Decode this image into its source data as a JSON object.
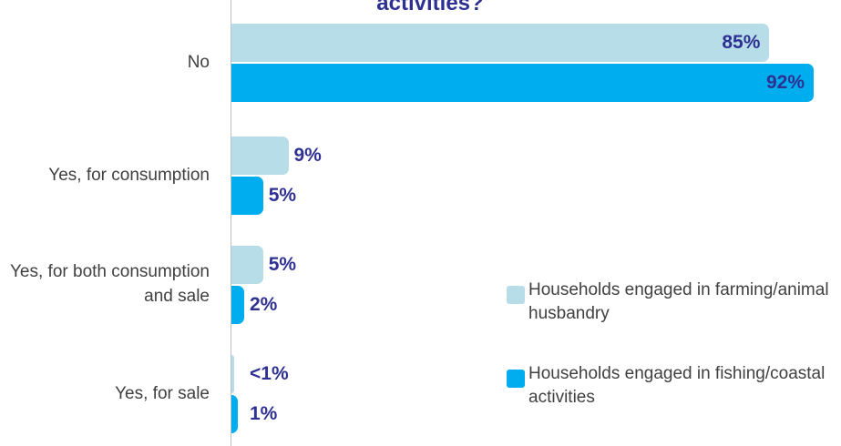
{
  "chart_data": {
    "type": "bar",
    "orientation": "horizontal",
    "title": "activities?",
    "categories": [
      "No",
      "Yes, for consumption",
      "Yes, for both consumption and sale",
      "Yes, for sale"
    ],
    "series": [
      {
        "name": "Households engaged in farming/animal husbandry",
        "color": "#b7dde8",
        "values": [
          85,
          9,
          5,
          0.5
        ],
        "value_labels": [
          "85%",
          "9%",
          "5%",
          "<1%"
        ]
      },
      {
        "name": "Households engaged in fishing/coastal activities",
        "color": "#00aeef",
        "values": [
          92,
          5,
          2,
          1
        ],
        "value_labels": [
          "92%",
          "5%",
          "2%",
          "1%"
        ]
      }
    ],
    "xlim": [
      0,
      92
    ]
  }
}
